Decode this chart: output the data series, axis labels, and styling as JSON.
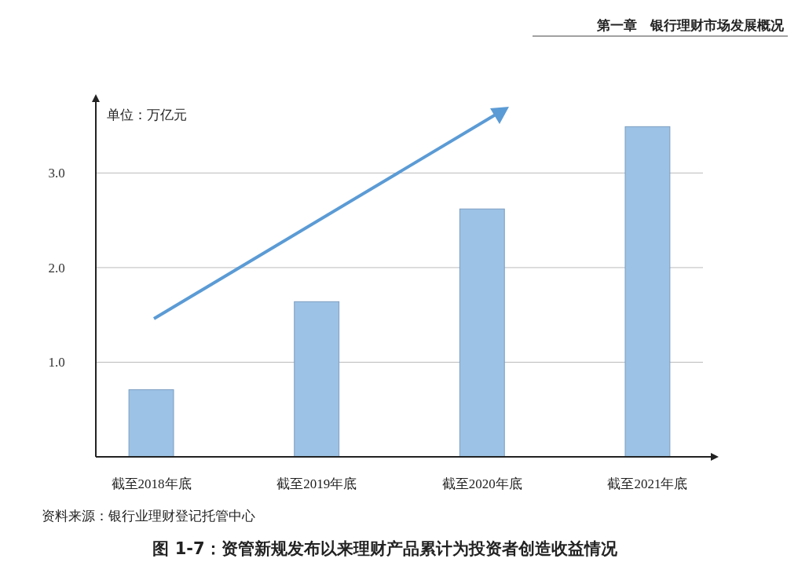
{
  "chart_data": {
    "type": "bar",
    "title": "图 1-7：资管新规发布以来理财产品累计为投资者创造收益情况",
    "ylabel": "单位：万亿元",
    "categories": [
      "截至2018年底",
      "截至2019年底",
      "截至2020年底",
      "截至2021年底"
    ],
    "values": [
      0.71,
      1.64,
      2.62,
      3.49
    ],
    "color": "#9cc2e5",
    "ylim": [
      0,
      3.75
    ],
    "yticks": [
      {
        "value": 1,
        "label": "1.0"
      },
      {
        "value": 2,
        "label": "2.0"
      },
      {
        "value": 3,
        "label": "3.0"
      }
    ],
    "grid": "y",
    "annotations": [
      "第一章　银行理财市场发展概况",
      "资料来源：银行业理财登记托管中心"
    ]
  }
}
